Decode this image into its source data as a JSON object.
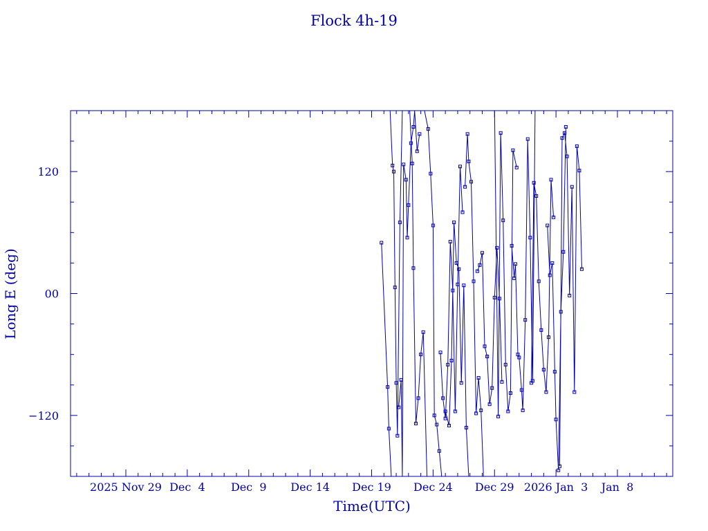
{
  "chart_data": {
    "type": "line",
    "title": "Flock 4h-19",
    "xlabel": "Time(UTC)",
    "ylabel": "Long E (deg)",
    "ylim": [
      -180,
      180
    ],
    "xlim_days": [
      -4.5,
      44.5
    ],
    "y_ticks": [
      -120,
      0,
      120
    ],
    "y_tick_labels": [
      "−120",
      "00",
      "120"
    ],
    "x_ticks": [
      {
        "day": 0,
        "label": "2025 Nov 29"
      },
      {
        "day": 5,
        "label": "Dec  4"
      },
      {
        "day": 10,
        "label": "Dec  9"
      },
      {
        "day": 15,
        "label": "Dec 14"
      },
      {
        "day": 20,
        "label": "Dec 19"
      },
      {
        "day": 25,
        "label": "Dec 24"
      },
      {
        "day": 30,
        "label": "Dec 29"
      },
      {
        "day": 35,
        "label": "2026 Jan  3"
      },
      {
        "day": 40,
        "label": "Jan  8"
      }
    ],
    "grid": false,
    "color": "#0000aa",
    "series": [
      {
        "x": [
          20.8,
          21.3,
          21.4,
          21.6,
          21.7
        ],
        "y": [
          50,
          -92,
          -133,
          -180,
          -180
        ]
      },
      {
        "x": [
          21.5,
          21.7,
          21.8,
          21.9,
          22.0,
          22.1,
          22.3,
          22.5,
          22.7
        ],
        "y": [
          180,
          126,
          120,
          6,
          -88,
          -140,
          70,
          180,
          180
        ]
      },
      {
        "x": [
          22.2,
          22.4,
          22.5,
          22.6,
          22.8,
          22.9,
          23.0,
          23.2,
          23.4,
          23.5,
          23.7,
          23.9
        ],
        "y": [
          -112,
          -85,
          -180,
          127,
          112,
          55,
          87,
          148,
          164,
          180,
          140,
          157
        ]
      },
      {
        "x": [
          23.1,
          23.3,
          23.4,
          23.6,
          23.8,
          24.0,
          24.2,
          24.5
        ],
        "y": [
          180,
          128,
          25,
          -128,
          -103,
          -60,
          -38,
          -180
        ]
      },
      {
        "x": [
          24.3,
          24.6,
          24.8,
          25.0,
          25.1,
          25.3,
          25.5,
          25.7
        ],
        "y": [
          180,
          162,
          118,
          67,
          -120,
          -129,
          -155,
          -180
        ]
      },
      {
        "x": [
          25.6,
          25.8,
          26.0,
          26.2,
          26.4,
          26.6,
          26.8,
          27.0,
          27.2,
          27.4
        ],
        "y": [
          -58,
          -103,
          -123,
          -70,
          51,
          3,
          -116,
          9,
          125,
          80
        ]
      },
      {
        "x": [
          26.0,
          26.3,
          26.5,
          26.7,
          26.9,
          27.1,
          27.3,
          27.5,
          27.7,
          27.9
        ],
        "y": [
          -116,
          -130,
          -66,
          70,
          30,
          24,
          -88,
          8,
          -132,
          -180
        ]
      },
      {
        "x": [
          27.6,
          27.8,
          27.9,
          28.1,
          28.3,
          28.5,
          28.7,
          28.9,
          29.1
        ],
        "y": [
          105,
          157,
          130,
          110,
          12,
          -118,
          -83,
          -115,
          -180
        ]
      },
      {
        "x": [
          28.6,
          28.8,
          29.0,
          29.2,
          29.4,
          29.6,
          29.8,
          30.0,
          30.2,
          30.4,
          30.6
        ],
        "y": [
          22,
          28,
          40,
          -52,
          -62,
          -109,
          -93,
          -4,
          45,
          -5,
          -87
        ]
      },
      {
        "x": [
          30.0,
          30.3,
          30.5,
          30.7,
          30.9,
          31.1,
          31.3,
          31.5,
          31.8
        ],
        "y": [
          180,
          -121,
          158,
          72,
          -70,
          -116,
          -98,
          141,
          124
        ]
      },
      {
        "x": [
          31.4,
          31.6,
          31.7,
          31.9,
          32.0,
          32.2,
          32.3,
          32.5,
          32.7,
          32.9,
          33.1,
          33.3
        ],
        "y": [
          47,
          15,
          29,
          -60,
          -63,
          -95,
          -115,
          -26,
          152,
          55,
          -86,
          180
        ]
      },
      {
        "x": [
          33.0,
          33.2,
          33.4,
          33.6,
          33.8,
          34.0,
          34.2,
          34.4,
          34.6,
          34.8
        ],
        "y": [
          -88,
          109,
          96,
          12,
          -36,
          -75,
          -97,
          -43,
          112,
          75
        ]
      },
      {
        "x": [
          34.3,
          34.5,
          34.7,
          34.9,
          35.0,
          35.2,
          35.4,
          35.6,
          35.8
        ],
        "y": [
          67,
          18,
          30,
          -77,
          -124,
          -174,
          -18,
          41,
          164
        ]
      },
      {
        "x": [
          35.3,
          35.5,
          35.7,
          35.9,
          36.1,
          36.3,
          36.5,
          36.7,
          36.9,
          37.1
        ],
        "y": [
          -170,
          153,
          158,
          135,
          -2,
          105,
          -97,
          145,
          121,
          24
        ]
      }
    ]
  }
}
